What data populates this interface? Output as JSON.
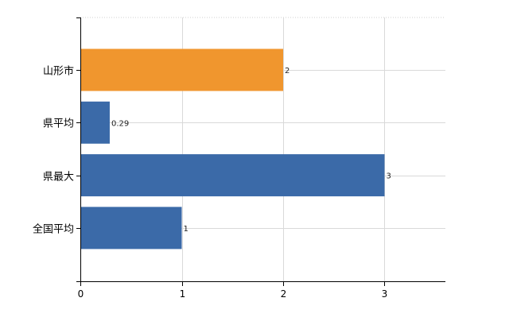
{
  "chart_data": {
    "type": "bar",
    "orientation": "horizontal",
    "title": "",
    "xlabel": "",
    "ylabel": "",
    "categories": [
      "山形市",
      "県平均",
      "県最大",
      "全国平均"
    ],
    "values": [
      2,
      0.29,
      3,
      1
    ],
    "data_labels": [
      "2",
      "0.29",
      "3",
      "1"
    ],
    "bar_colors": [
      "#f0962e",
      "#3b6aa8",
      "#3b6aa8",
      "#3b6aa8"
    ],
    "xlim": [
      0,
      3.6
    ],
    "x_ticks": [
      0,
      1,
      2,
      3
    ],
    "x_tick_labels": [
      "0",
      "1",
      "2",
      "3"
    ],
    "grid": true,
    "legend": "none"
  }
}
